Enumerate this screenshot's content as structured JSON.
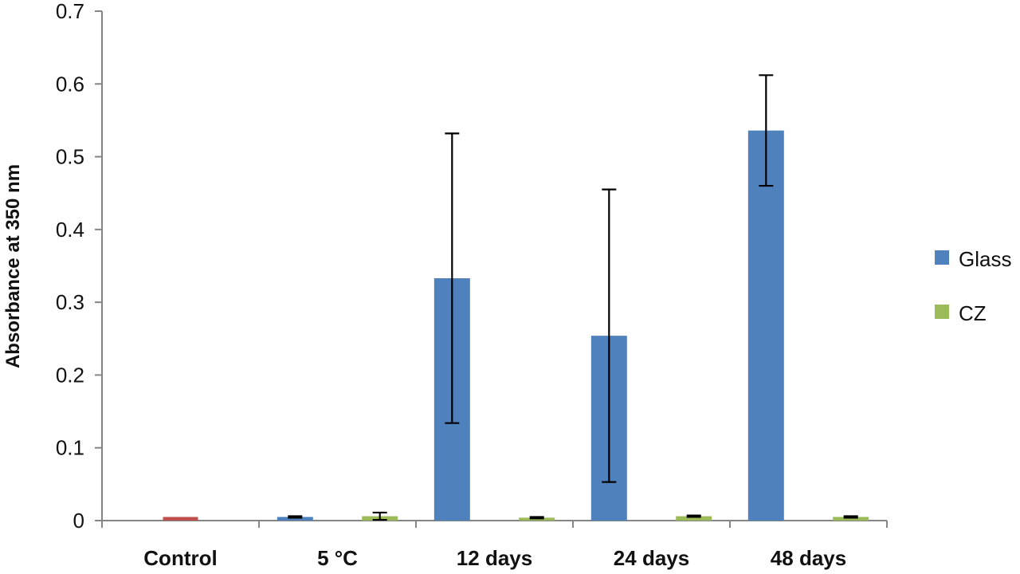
{
  "chart_data": {
    "type": "bar",
    "title": "",
    "xlabel": "",
    "ylabel": "Absorbance at 350 nm",
    "ylim": [
      0,
      0.7
    ],
    "yticks": [
      0,
      0.1,
      0.2,
      0.3,
      0.4,
      0.5,
      0.6,
      0.7
    ],
    "ytick_labels": [
      "0",
      "0.1",
      "0.2",
      "0.3",
      "0.4",
      "0.5",
      "0.6",
      "0.7"
    ],
    "grid": false,
    "legend_position": "right",
    "categories": [
      "Control",
      "5 °C",
      "12 days",
      "24 days",
      "48 days"
    ],
    "control": {
      "value": 0.005,
      "color": "#c0504d"
    },
    "series": [
      {
        "name": "Glass",
        "color": "#4f81bd",
        "values": [
          null,
          0.005,
          0.333,
          0.254,
          0.536
        ],
        "errors": [
          null,
          0.001,
          0.199,
          0.201,
          0.076
        ]
      },
      {
        "name": "CZ",
        "color": "#9bbb59",
        "values": [
          null,
          0.006,
          0.004,
          0.006,
          0.005
        ],
        "errors": [
          null,
          0.005,
          0.001,
          0.001,
          0.001
        ]
      }
    ]
  }
}
